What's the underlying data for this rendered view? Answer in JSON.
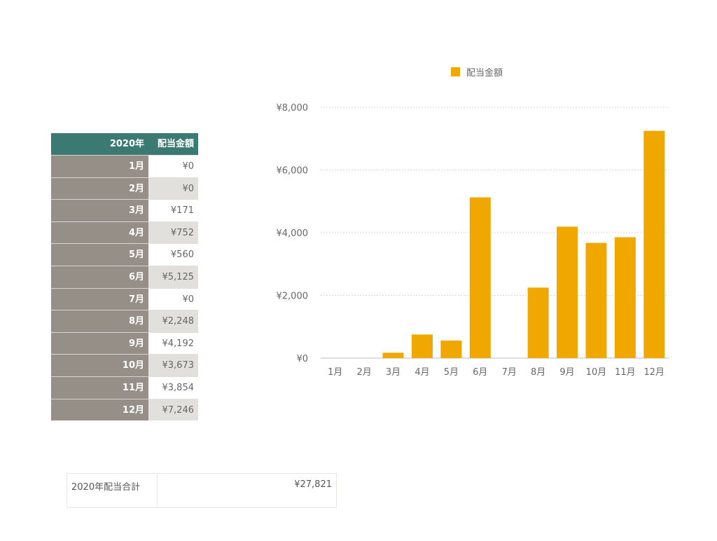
{
  "table": {
    "header_year": "2020年",
    "header_amount": "配当金額",
    "rows": [
      {
        "month": "1月",
        "amount": "¥0"
      },
      {
        "month": "2月",
        "amount": "¥0"
      },
      {
        "month": "3月",
        "amount": "¥171"
      },
      {
        "month": "4月",
        "amount": "¥752"
      },
      {
        "month": "5月",
        "amount": "¥560"
      },
      {
        "month": "6月",
        "amount": "¥5,125"
      },
      {
        "month": "7月",
        "amount": "¥0"
      },
      {
        "month": "8月",
        "amount": "¥2,248"
      },
      {
        "month": "9月",
        "amount": "¥4,192"
      },
      {
        "month": "10月",
        "amount": "¥3,673"
      },
      {
        "month": "11月",
        "amount": "¥3,854"
      },
      {
        "month": "12月",
        "amount": "¥7,246"
      }
    ]
  },
  "total": {
    "label": "2020年配当合計",
    "value": "¥27,821"
  },
  "colors": {
    "bar": "#f0a800",
    "header": "#3a7a72",
    "row_label": "#958f88"
  },
  "chart_data": {
    "type": "bar",
    "categories": [
      "1月",
      "2月",
      "3月",
      "4月",
      "5月",
      "6月",
      "7月",
      "8月",
      "9月",
      "10月",
      "11月",
      "12月"
    ],
    "series": [
      {
        "name": "配当金額",
        "values": [
          0,
          0,
          171,
          752,
          560,
          5125,
          0,
          2248,
          4192,
          3673,
          3854,
          7246
        ]
      }
    ],
    "ylim": [
      0,
      8000
    ],
    "yticks": [
      0,
      2000,
      4000,
      6000,
      8000
    ],
    "ytick_labels": [
      "¥0",
      "¥2,000",
      "¥4,000",
      "¥6,000",
      "¥8,000"
    ],
    "grid": true,
    "legend": "top"
  }
}
